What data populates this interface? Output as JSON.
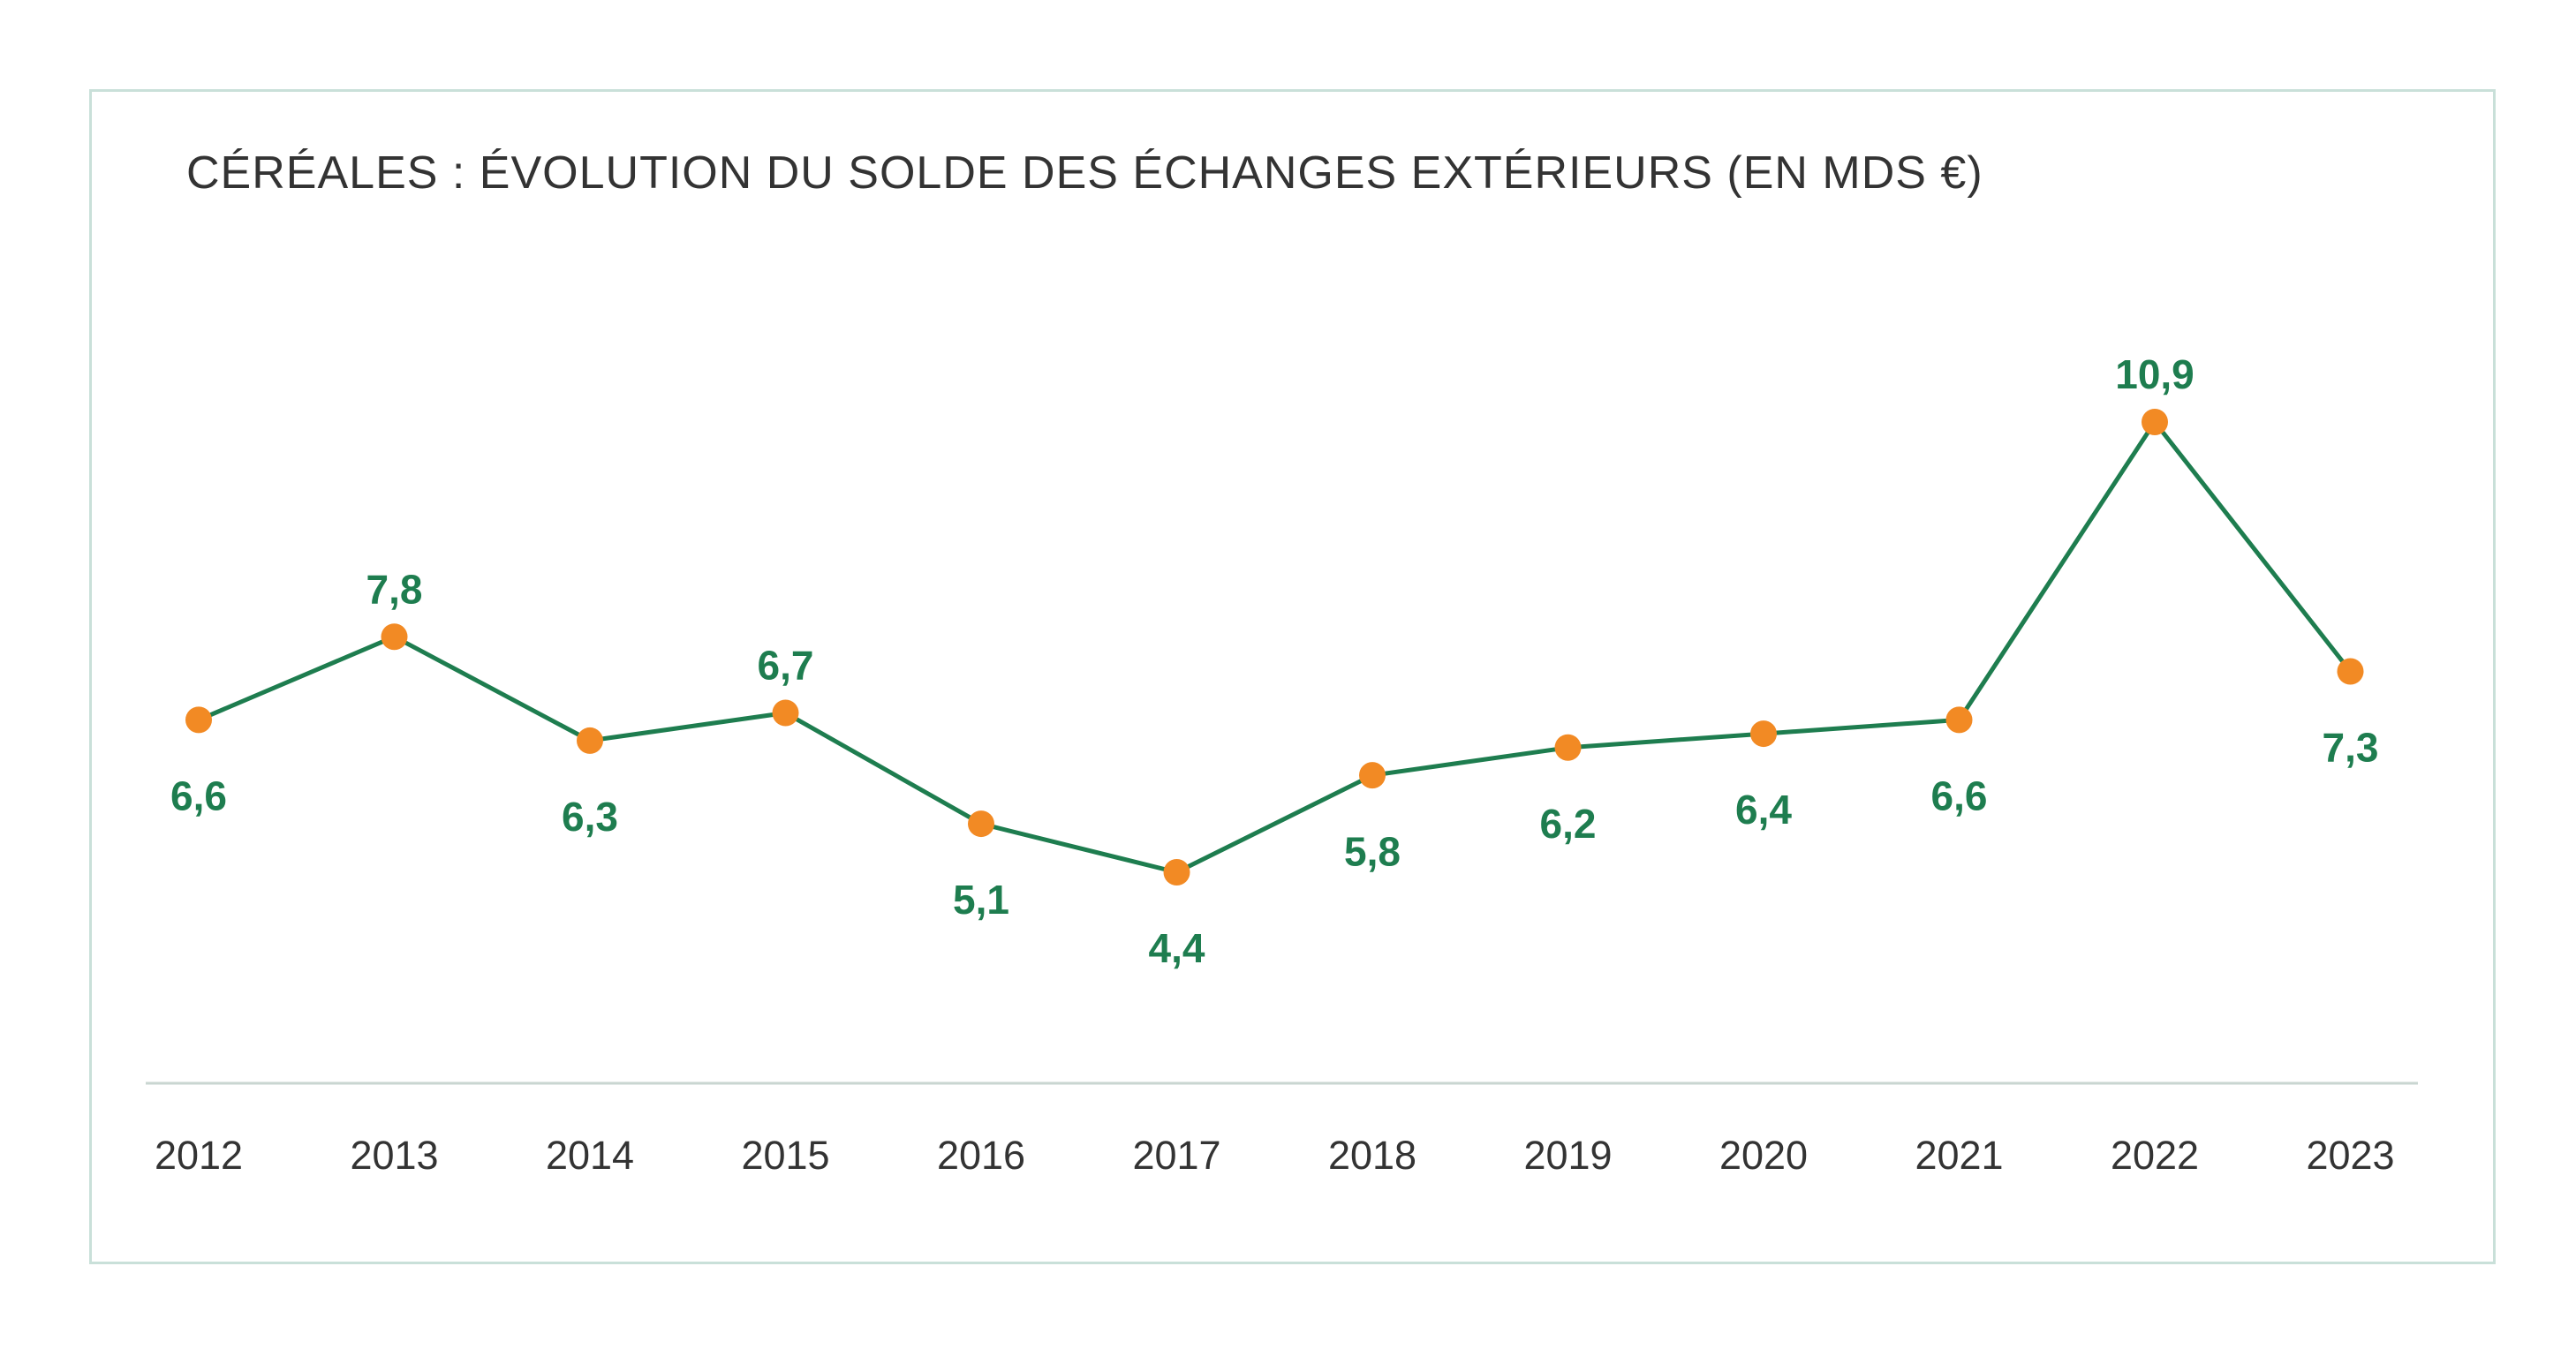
{
  "chart_data": {
    "type": "line",
    "title": "CÉRÉALES : ÉVOLUTION DU SOLDE DES ÉCHANGES EXTÉRIEURS (EN MDS €)",
    "xlabel": "",
    "ylabel": "",
    "grid": false,
    "legend": null,
    "categories": [
      "2012",
      "2013",
      "2014",
      "2015",
      "2016",
      "2017",
      "2018",
      "2019",
      "2020",
      "2021",
      "2022",
      "2023"
    ],
    "series": [
      {
        "name": "Solde des échanges extérieurs",
        "values": [
          6.6,
          7.8,
          6.3,
          6.7,
          5.1,
          4.4,
          5.8,
          6.2,
          6.4,
          6.6,
          10.9,
          7.3
        ],
        "labels": [
          "6,6",
          "7,8",
          "6,3",
          "6,7",
          "5,1",
          "4,4",
          "5,8",
          "6,2",
          "6,4",
          "6,6",
          "10,9",
          "7,3"
        ],
        "label_positions": [
          "below",
          "above",
          "below",
          "above",
          "below",
          "below",
          "below",
          "below",
          "below",
          "below",
          "above",
          "below"
        ]
      }
    ],
    "ylim": [
      4.4,
      10.9
    ],
    "colors": {
      "line": "#1e7d4f",
      "marker": "#f28a24",
      "data_label": "#1e7d4f",
      "axis": "#c9d6d1",
      "tick_label": "#333333",
      "title": "#333333",
      "frame": "#c9e0d9"
    }
  }
}
